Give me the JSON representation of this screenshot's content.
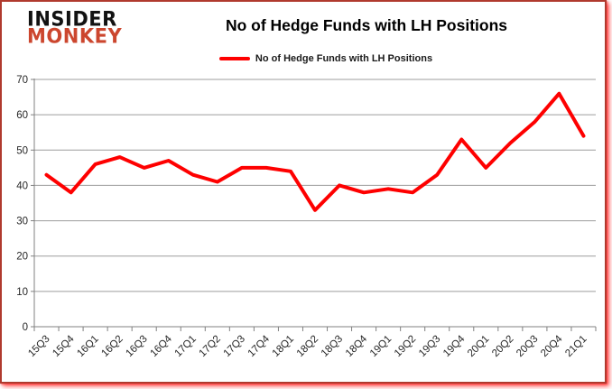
{
  "brand": {
    "line1": "INSIDER",
    "line2": "MONKEY"
  },
  "header": {
    "title": "No of Hedge Funds with LH Positions"
  },
  "legend": {
    "label": "No of Hedge Funds with LH Positions"
  },
  "colors": {
    "line": "#fe0000",
    "gridline": "#9d9d9d",
    "axis": "#808080",
    "label": "#262626",
    "brand_red": "#cc462e"
  },
  "chart_data": {
    "type": "line",
    "title": "No of Hedge Funds with LH Positions",
    "series": [
      {
        "name": "No of Hedge Funds with LH Positions",
        "values": [
          43,
          38,
          46,
          48,
          45,
          47,
          43,
          41,
          45,
          45,
          44,
          33,
          40,
          38,
          39,
          38,
          43,
          53,
          45,
          52,
          58,
          66,
          54
        ]
      }
    ],
    "categories": [
      "15Q3",
      "15Q4",
      "16Q1",
      "16Q2",
      "16Q3",
      "16Q4",
      "17Q1",
      "17Q2",
      "17Q3",
      "17Q4",
      "18Q1",
      "18Q2",
      "18Q3",
      "18Q4",
      "19Q1",
      "19Q2",
      "19Q3",
      "19Q4",
      "20Q1",
      "20Q2",
      "20Q3",
      "20Q4",
      "21Q1"
    ],
    "xlabel": "",
    "ylabel": "",
    "ylim": [
      0,
      70
    ],
    "yticks": [
      0,
      10,
      20,
      30,
      40,
      50,
      60,
      70
    ],
    "grid": true,
    "legend_position": "top-center",
    "x_tick_label_rotation": -45
  }
}
